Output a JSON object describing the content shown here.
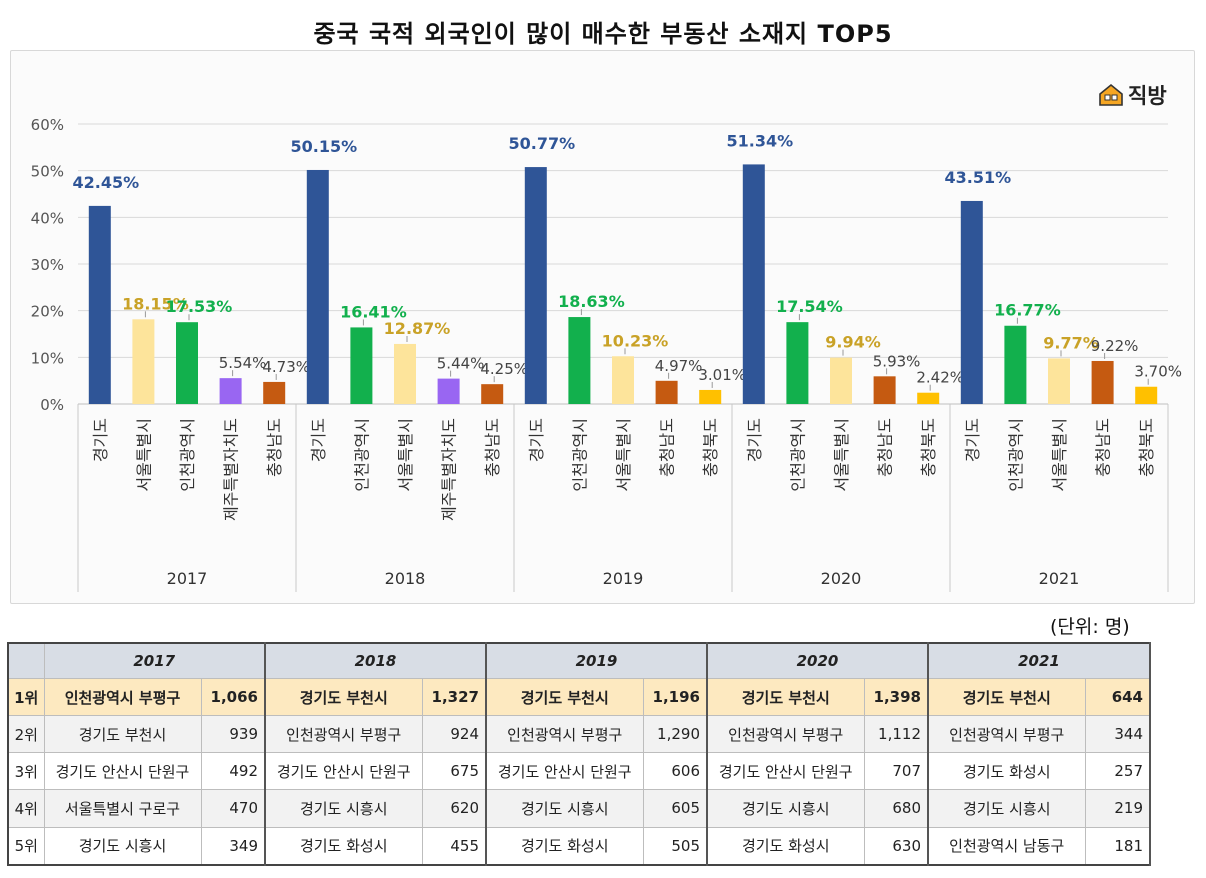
{
  "title": "중국 국적 외국인이 많이 매수한 부동산 소재지 TOP5",
  "brand": {
    "name": "직방",
    "icon": "house-logo-icon",
    "color": "#f5a623"
  },
  "unit_label": "(단위: 명)",
  "chart_data": {
    "type": "bar",
    "ylabel": "",
    "xlabel": "",
    "ylim": [
      0,
      60
    ],
    "yticks": [
      "0%",
      "10%",
      "20%",
      "30%",
      "40%",
      "50%",
      "60%"
    ],
    "groups": [
      {
        "year": "2017",
        "bars": [
          {
            "region": "경기도",
            "value": 42.45,
            "label": "42.45%",
            "color": "#2f5597",
            "label_color": "#2f5597"
          },
          {
            "region": "서울특별시",
            "value": 18.15,
            "label": "18.15%",
            "color": "#fde49b",
            "label_color": "#c9a227"
          },
          {
            "region": "인천광역시",
            "value": 17.53,
            "label": "17.53%",
            "color": "#12b04d",
            "label_color": "#12b04d"
          },
          {
            "region": "제주특별자치도",
            "value": 5.54,
            "label": "5.54%",
            "color": "#9966f2",
            "label_color": "#444444"
          },
          {
            "region": "충청남도",
            "value": 4.73,
            "label": "4.73%",
            "color": "#c55a11",
            "label_color": "#444444"
          }
        ]
      },
      {
        "year": "2018",
        "bars": [
          {
            "region": "경기도",
            "value": 50.15,
            "label": "50.15%",
            "color": "#2f5597",
            "label_color": "#2f5597"
          },
          {
            "region": "인천광역시",
            "value": 16.41,
            "label": "16.41%",
            "color": "#12b04d",
            "label_color": "#12b04d"
          },
          {
            "region": "서울특별시",
            "value": 12.87,
            "label": "12.87%",
            "color": "#fde49b",
            "label_color": "#c9a227"
          },
          {
            "region": "제주특별자치도",
            "value": 5.44,
            "label": "5.44%",
            "color": "#9966f2",
            "label_color": "#444444"
          },
          {
            "region": "충청남도",
            "value": 4.25,
            "label": "4.25%",
            "color": "#c55a11",
            "label_color": "#444444"
          }
        ]
      },
      {
        "year": "2019",
        "bars": [
          {
            "region": "경기도",
            "value": 50.77,
            "label": "50.77%",
            "color": "#2f5597",
            "label_color": "#2f5597"
          },
          {
            "region": "인천광역시",
            "value": 18.63,
            "label": "18.63%",
            "color": "#12b04d",
            "label_color": "#12b04d"
          },
          {
            "region": "서울특별시",
            "value": 10.23,
            "label": "10.23%",
            "color": "#fde49b",
            "label_color": "#c9a227"
          },
          {
            "region": "충청남도",
            "value": 4.97,
            "label": "4.97%",
            "color": "#c55a11",
            "label_color": "#444444"
          },
          {
            "region": "충청북도",
            "value": 3.01,
            "label": "3.01%",
            "color": "#ffc000",
            "label_color": "#444444"
          }
        ]
      },
      {
        "year": "2020",
        "bars": [
          {
            "region": "경기도",
            "value": 51.34,
            "label": "51.34%",
            "color": "#2f5597",
            "label_color": "#2f5597"
          },
          {
            "region": "인천광역시",
            "value": 17.54,
            "label": "17.54%",
            "color": "#12b04d",
            "label_color": "#12b04d"
          },
          {
            "region": "서울특별시",
            "value": 9.94,
            "label": "9.94%",
            "color": "#fde49b",
            "label_color": "#c9a227"
          },
          {
            "region": "충청남도",
            "value": 5.93,
            "label": "5.93%",
            "color": "#c55a11",
            "label_color": "#444444"
          },
          {
            "region": "충청북도",
            "value": 2.42,
            "label": "2.42%",
            "color": "#ffc000",
            "label_color": "#444444"
          }
        ]
      },
      {
        "year": "2021",
        "bars": [
          {
            "region": "경기도",
            "value": 43.51,
            "label": "43.51%",
            "color": "#2f5597",
            "label_color": "#2f5597"
          },
          {
            "region": "인천광역시",
            "value": 16.77,
            "label": "16.77%",
            "color": "#12b04d",
            "label_color": "#12b04d"
          },
          {
            "region": "서울특별시",
            "value": 9.77,
            "label": "9.77%",
            "color": "#fde49b",
            "label_color": "#c9a227"
          },
          {
            "region": "충청남도",
            "value": 9.22,
            "label": "9.22%",
            "color": "#c55a11",
            "label_color": "#444444"
          },
          {
            "region": "충청북도",
            "value": 3.7,
            "label": "3.70%",
            "color": "#ffc000",
            "label_color": "#444444"
          }
        ]
      }
    ]
  },
  "table": {
    "years": [
      "2017",
      "2018",
      "2019",
      "2020",
      "2021"
    ],
    "rows": [
      {
        "rank": "1위",
        "cells": [
          {
            "name": "인천광역시 부평구",
            "value": "1,066"
          },
          {
            "name": "경기도 부천시",
            "value": "1,327"
          },
          {
            "name": "경기도 부천시",
            "value": "1,196"
          },
          {
            "name": "경기도 부천시",
            "value": "1,398"
          },
          {
            "name": "경기도 부천시",
            "value": "644"
          }
        ]
      },
      {
        "rank": "2위",
        "cells": [
          {
            "name": "경기도 부천시",
            "value": "939"
          },
          {
            "name": "인천광역시 부평구",
            "value": "924"
          },
          {
            "name": "인천광역시 부평구",
            "value": "1,290"
          },
          {
            "name": "인천광역시 부평구",
            "value": "1,112"
          },
          {
            "name": "인천광역시 부평구",
            "value": "344"
          }
        ]
      },
      {
        "rank": "3위",
        "cells": [
          {
            "name": "경기도 안산시 단원구",
            "value": "492"
          },
          {
            "name": "경기도 안산시 단원구",
            "value": "675"
          },
          {
            "name": "경기도 안산시 단원구",
            "value": "606"
          },
          {
            "name": "경기도 안산시 단원구",
            "value": "707"
          },
          {
            "name": "경기도 화성시",
            "value": "257"
          }
        ]
      },
      {
        "rank": "4위",
        "cells": [
          {
            "name": "서울특별시 구로구",
            "value": "470"
          },
          {
            "name": "경기도 시흥시",
            "value": "620"
          },
          {
            "name": "경기도 시흥시",
            "value": "605"
          },
          {
            "name": "경기도 시흥시",
            "value": "680"
          },
          {
            "name": "경기도 시흥시",
            "value": "219"
          }
        ]
      },
      {
        "rank": "5위",
        "cells": [
          {
            "name": "경기도 시흥시",
            "value": "349"
          },
          {
            "name": "경기도 화성시",
            "value": "455"
          },
          {
            "name": "경기도 화성시",
            "value": "505"
          },
          {
            "name": "경기도 화성시",
            "value": "630"
          },
          {
            "name": "인천광역시 남동구",
            "value": "181"
          }
        ]
      }
    ]
  }
}
